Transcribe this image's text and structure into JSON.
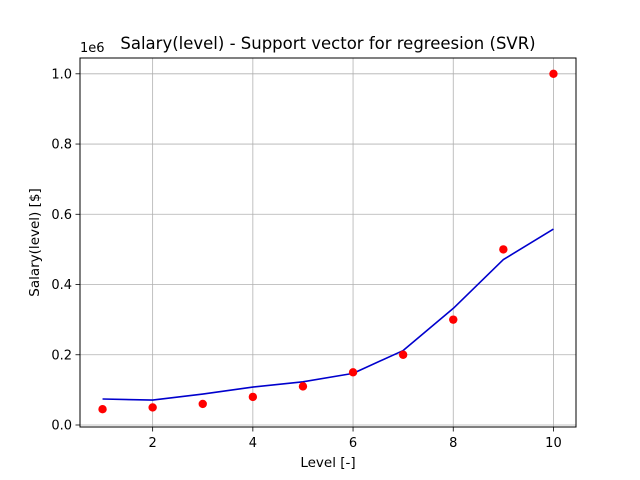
{
  "chart_data": {
    "type": "scatter",
    "title": "Salary(level) - Support vector for regreesion (SVR)",
    "xlabel": "Level [-]",
    "ylabel": "Salary(level) [$]",
    "y_offset_label": "1e6",
    "xlim": [
      0.55,
      10.45
    ],
    "ylim": [
      -0.0057,
      1.045
    ],
    "x_ticks": [
      2,
      4,
      6,
      8,
      10
    ],
    "x_tick_labels": [
      "2",
      "4",
      "6",
      "8",
      "10"
    ],
    "y_ticks": [
      0.0,
      0.2,
      0.4,
      0.6,
      0.8,
      1.0
    ],
    "y_tick_labels": [
      "0.0",
      "0.2",
      "0.4",
      "0.6",
      "0.8",
      "1.0"
    ],
    "grid": true,
    "series": [
      {
        "kind": "scatter",
        "color": "#ff0000",
        "x": [
          1,
          2,
          3,
          4,
          5,
          6,
          7,
          8,
          9,
          10
        ],
        "y": [
          0.045,
          0.05,
          0.06,
          0.08,
          0.11,
          0.15,
          0.2,
          0.3,
          0.5,
          1.0
        ]
      },
      {
        "kind": "line",
        "color": "#0000cd",
        "x": [
          1,
          2,
          3,
          4,
          5,
          6,
          7,
          8,
          9,
          10
        ],
        "y": [
          0.074,
          0.071,
          0.088,
          0.108,
          0.123,
          0.147,
          0.212,
          0.332,
          0.471,
          0.558
        ]
      }
    ]
  }
}
